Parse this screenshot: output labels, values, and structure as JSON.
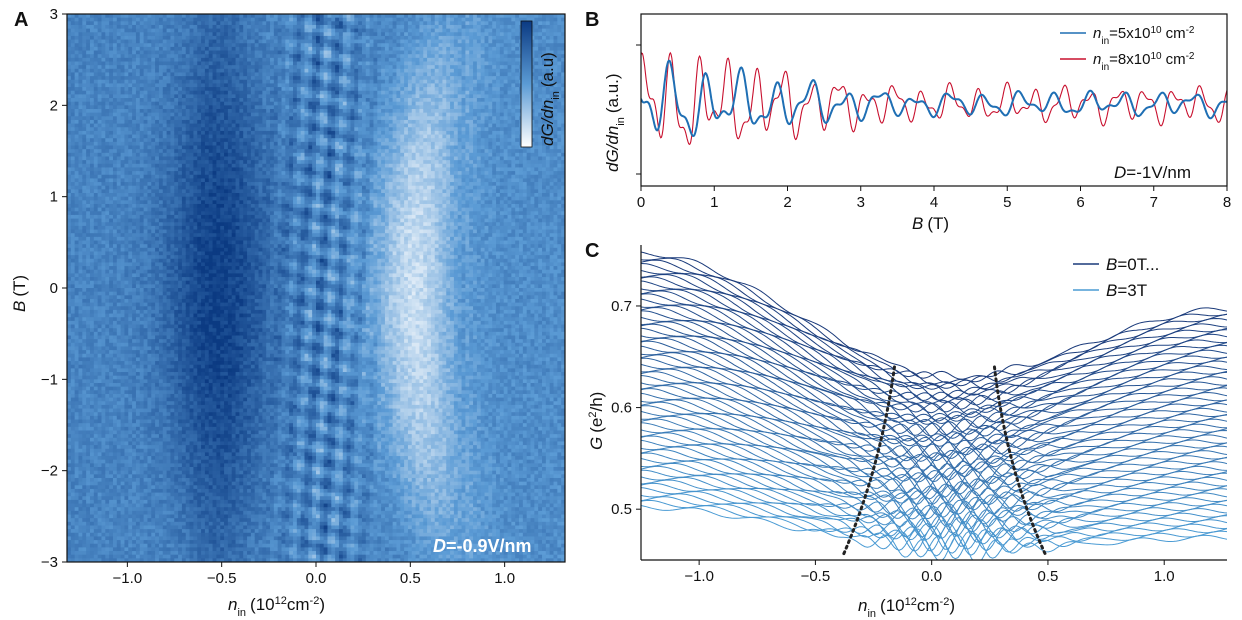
{
  "chart_data": [
    {
      "panel": "A",
      "type": "heatmap",
      "xlabel": "n_in (10^12cm^-2)",
      "ylabel": "B (T)",
      "xlim": [
        -1.32,
        1.32
      ],
      "ylim": [
        -3,
        3
      ],
      "xticks": [
        "−1.0",
        "−0.5",
        "0.0",
        "0.5",
        "1.0"
      ],
      "xtick_values": [
        -1.0,
        -0.5,
        0.0,
        0.5,
        1.0
      ],
      "yticks": [
        "−3",
        "−2",
        "−1",
        "0",
        "1",
        "2",
        "3"
      ],
      "ytick_values": [
        -3,
        -2,
        -1,
        0,
        1,
        2,
        3
      ],
      "colorbar_label": "dG/dn_in (a.u)",
      "annotation": "D=-0.9V/nm",
      "colormap": [
        "#ffffff",
        "#0b3a82"
      ]
    },
    {
      "panel": "B",
      "type": "line",
      "xlabel": "B (T)",
      "ylabel": "dG/dn_in (a.u.)",
      "xlim": [
        0,
        8
      ],
      "xticks": [
        "0",
        "1",
        "2",
        "3",
        "4",
        "5",
        "6",
        "7",
        "8"
      ],
      "xtick_values": [
        0,
        1,
        2,
        3,
        4,
        5,
        6,
        7,
        8
      ],
      "annotation": "D=-1V/nm",
      "legend_position": "top-right",
      "series": [
        {
          "name": "n_in=5x10^10 cm^-2",
          "color": "#1f6fb4"
        },
        {
          "name": "n_in=8x10^10 cm^-2",
          "color": "#c8102e"
        }
      ]
    },
    {
      "panel": "C",
      "type": "line",
      "xlabel": "n_in (10^12cm^-2)",
      "ylabel": "G (e^2/h)",
      "xlim": [
        -1.25,
        1.27
      ],
      "ylim": [
        0.45,
        0.76
      ],
      "xticks": [
        "−1.0",
        "−0.5",
        "0.0",
        "0.5",
        "1.0"
      ],
      "xtick_values": [
        -1.0,
        -0.5,
        0.0,
        0.5,
        1.0
      ],
      "yticks": [
        "0.5",
        "0.6",
        "0.7"
      ],
      "ytick_values": [
        0.5,
        0.6,
        0.7
      ],
      "legend_position": "top-right",
      "series": [
        {
          "name": "B=0T...",
          "color": "#1a3a7a"
        },
        {
          "name": "B=3T",
          "color": "#4a9bd4"
        }
      ]
    }
  ],
  "labels": {
    "panel_a": "A",
    "panel_b": "B",
    "panel_c": "C",
    "a_xlabel_main": "n",
    "a_xlabel_sub": "in",
    "a_xlabel_unit": "(10",
    "a_xlabel_sup": "12",
    "a_xlabel_tail": "cm",
    "a_xlabel_sup2": "-2",
    "a_xlabel_close": ")",
    "a_ylabel_main": "B",
    "a_ylabel_unit": "(T)",
    "cbar_main": "dG/dn",
    "cbar_sub": "in",
    "cbar_unit": "(a.u)",
    "a_annot_italic": "D",
    "a_annot_rest": "=-0.9V/nm",
    "b_ylabel_main": "dG/dn",
    "b_ylabel_sub": "in",
    "b_ylabel_unit": "(a.u.)",
    "b_xlabel_main": "B",
    "b_xlabel_unit": "(T)",
    "b_annot_italic": "D",
    "b_annot_rest": "=-1V/nm",
    "b_leg1_main": "n",
    "b_leg1_sub": "in",
    "b_leg1_rest": "=5x10",
    "b_leg1_sup": "10",
    "b_leg1_unit": "cm",
    "b_leg1_sup2": "-2",
    "b_leg2_main": "n",
    "b_leg2_sub": "in",
    "b_leg2_rest": "=8x10",
    "b_leg2_sup": "10",
    "b_leg2_unit": "cm",
    "b_leg2_sup2": "-2",
    "c_ylabel_main": "G",
    "c_ylabel_unit": "(e",
    "c_ylabel_sup": "2",
    "c_ylabel_tail": "/h)",
    "c_xlabel_main": "n",
    "c_xlabel_sub": "in",
    "c_xlabel_unit": "(10",
    "c_xlabel_sup": "12",
    "c_xlabel_tail": "cm",
    "c_xlabel_sup2": "-2",
    "c_xlabel_close": ")",
    "c_leg1_italic": "B",
    "c_leg1_rest": "=0T...",
    "c_leg2_italic": "B",
    "c_leg2_rest": "=3T"
  }
}
